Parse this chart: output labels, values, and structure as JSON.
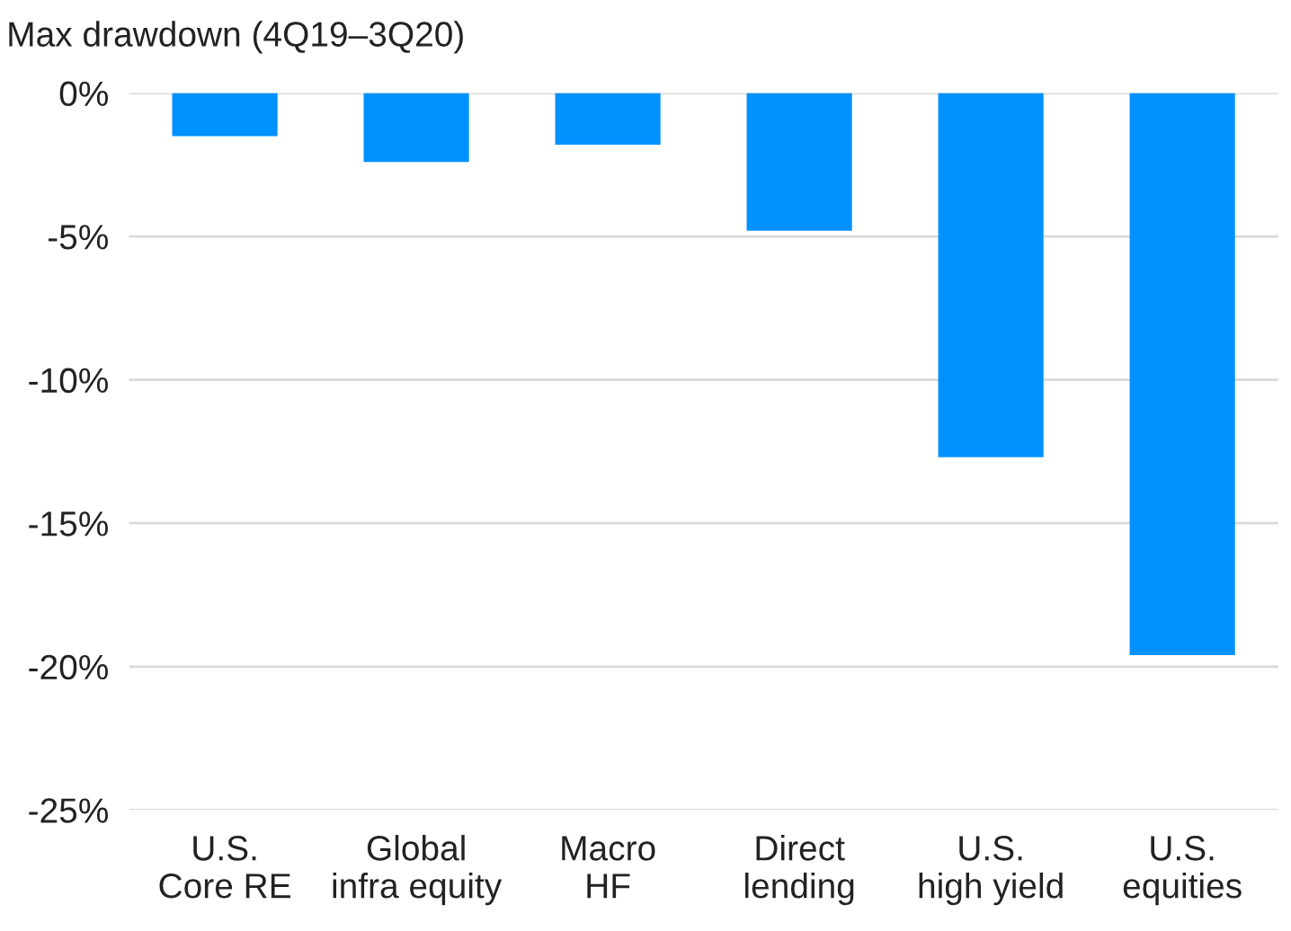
{
  "chart_data": {
    "type": "bar",
    "title": "Max drawdown (4Q19–3Q20)",
    "categories": [
      "U.S.\nCore RE",
      "Global\ninfra equity",
      "Macro\nHF",
      "Direct\nlending",
      "U.S.\nhigh yield",
      "U.S.\nequities"
    ],
    "values": [
      -1.5,
      -2.4,
      -1.8,
      -4.8,
      -12.7,
      -19.6
    ],
    "color": "#0091ff",
    "ylim": [
      -25,
      0
    ],
    "yticks": [
      {
        "value": 0,
        "label": "0%"
      },
      {
        "value": -5,
        "label": "-5%"
      },
      {
        "value": -10,
        "label": "-10%"
      },
      {
        "value": -15,
        "label": "-15%"
      },
      {
        "value": -20,
        "label": "-20%"
      },
      {
        "value": -25,
        "label": "-25%"
      }
    ],
    "grid": "y"
  }
}
